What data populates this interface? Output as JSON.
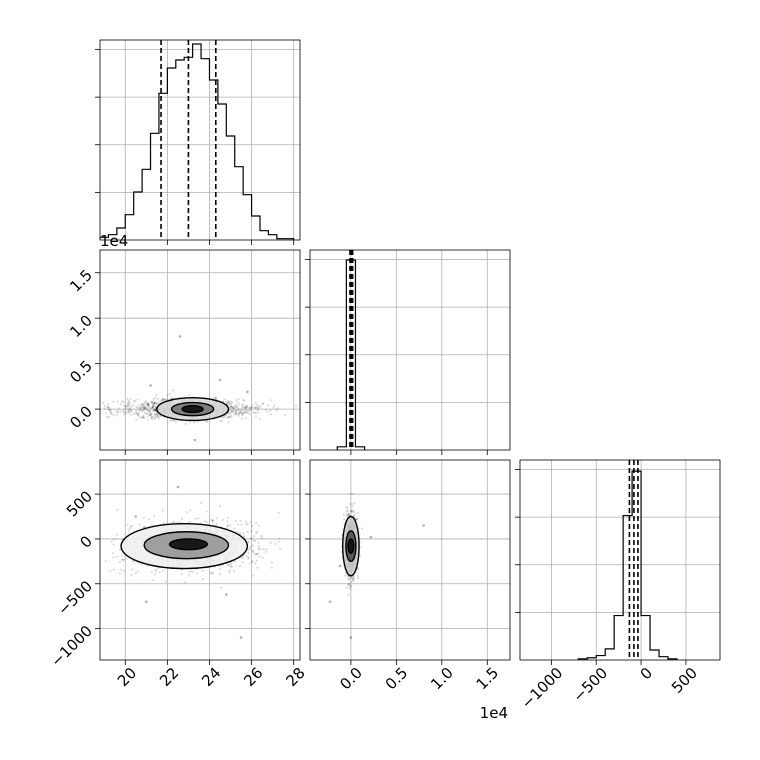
{
  "chart_data": {
    "type": "corner",
    "colors": {
      "hist": "#000000",
      "points": "#000000",
      "grid": "#b0b0b0"
    },
    "grid": true,
    "parameters": [
      {
        "xlim": [
          18.8,
          28.3
        ],
        "ticks": [
          20,
          22,
          24,
          26,
          28
        ],
        "tick_labels": [
          "20",
          "22",
          "24",
          "26",
          "28"
        ],
        "quantiles": [
          21.7,
          23.0,
          24.3
        ],
        "hist_edges": [
          18.8,
          19.2,
          19.6,
          20.0,
          20.4,
          20.8,
          21.2,
          21.6,
          22.0,
          22.4,
          22.8,
          23.2,
          23.6,
          24.0,
          24.4,
          24.8,
          25.2,
          25.6,
          26.0,
          26.4,
          26.8,
          27.2,
          27.6,
          28.0
        ],
        "hist_counts": [
          2,
          4,
          9,
          19,
          36,
          53,
          80,
          110,
          129,
          135,
          137,
          147,
          136,
          120,
          102,
          78,
          55,
          34,
          18,
          7,
          4,
          1,
          1
        ],
        "hist_max": 150
      },
      {
        "xlim": [
          -4500,
          17500
        ],
        "ticks": [
          0,
          5000,
          10000,
          15000
        ],
        "tick_labels": [
          "0.0",
          "0.5",
          "1.0",
          "1.5"
        ],
        "offset_label": "1e4",
        "quantiles": [
          -100,
          40,
          190
        ],
        "hist_edges": [
          -1500,
          -500,
          500,
          1500
        ],
        "hist_counts": [
          1.6,
          95,
          1.6
        ],
        "hist_max": 100
      },
      {
        "xlim": [
          -1350,
          880
        ],
        "ticks": [
          -1000,
          -500,
          0,
          500
        ],
        "tick_labels": [
          "−1000",
          "−500",
          "0",
          "500"
        ],
        "quantiles": [
          -130,
          -80,
          -35
        ],
        "hist_edges": [
          -700,
          -600,
          -500,
          -400,
          -300,
          -200,
          -100,
          0,
          100,
          200,
          300,
          400
        ],
        "hist_counts": [
          0.2,
          0.4,
          0.8,
          2.0,
          8.0,
          26.0,
          34.0,
          8.0,
          1.8,
          0.6,
          0.2
        ],
        "hist_max": 36
      }
    ],
    "scatter_panels": [
      {
        "x_param": 0,
        "y_param": 1,
        "ylim": [
          -4500,
          17500
        ],
        "y_ticks": [
          0,
          5000,
          10000,
          15000
        ],
        "y_tick_labels": [
          "0.0",
          "0.5",
          "1.0",
          "1.5"
        ],
        "y_offset_label": "1e4",
        "x_center": 23.0,
        "x_spread": 1.6,
        "y_center": 0,
        "y_spread": 550,
        "outliers": [
          [
            22.6,
            8000
          ],
          [
            24.5,
            3200
          ],
          [
            21.2,
            2600
          ],
          [
            23.3,
            -3400
          ],
          [
            25.8,
            1900
          ]
        ],
        "contours": [
          {
            "cx": 23.2,
            "cy": 0,
            "rx": 1.7,
            "ry": 1250,
            "fill": "#d9d9d9"
          },
          {
            "cx": 23.2,
            "cy": 0,
            "rx": 1.0,
            "ry": 720,
            "fill": "#7a7a7a"
          },
          {
            "cx": 23.2,
            "cy": 0,
            "rx": 0.5,
            "ry": 380,
            "fill": "#111111"
          }
        ]
      },
      {
        "x_param": 0,
        "y_param": 2,
        "ylim": [
          -1350,
          880
        ],
        "y_ticks": [
          -1000,
          -500,
          0,
          500
        ],
        "y_tick_labels": [
          "−1000",
          "−500",
          "0",
          "500"
        ],
        "x_center": 23.1,
        "x_spread": 1.5,
        "y_center": -80,
        "y_spread": 140,
        "outliers": [
          [
            22.5,
            580
          ],
          [
            21.0,
            -700
          ],
          [
            24.8,
            -620
          ],
          [
            20.5,
            250
          ],
          [
            25.5,
            -1100
          ]
        ],
        "contours": [
          {
            "cx": 22.8,
            "cy": -80,
            "rx": 3.0,
            "ry": 250,
            "fill": "#f0f0f0"
          },
          {
            "cx": 22.9,
            "cy": -70,
            "rx": 2.0,
            "ry": 150,
            "fill": "#9a9a9a"
          },
          {
            "cx": 23.0,
            "cy": -60,
            "rx": 0.9,
            "ry": 60,
            "fill": "#111111"
          }
        ]
      },
      {
        "x_param": 1,
        "y_param": 2,
        "ylim": [
          -1350,
          880
        ],
        "y_ticks": [
          -1000,
          -500,
          0,
          500
        ],
        "x_center": 0,
        "x_spread": 330,
        "y_center": -80,
        "y_spread": 160,
        "outliers": [
          [
            -2300,
            -700
          ],
          [
            8000,
            150
          ],
          [
            0,
            -1100
          ],
          [
            2200,
            20
          ],
          [
            -1200,
            -300
          ]
        ],
        "contours": [
          {
            "cx": 0,
            "cy": -80,
            "rx": 900,
            "ry": 330,
            "fill": "#cfcfcf"
          },
          {
            "cx": 0,
            "cy": -80,
            "rx": 550,
            "ry": 170,
            "fill": "#555555"
          },
          {
            "cx": 0,
            "cy": -80,
            "rx": 320,
            "ry": 80,
            "fill": "#111111"
          }
        ]
      }
    ]
  }
}
